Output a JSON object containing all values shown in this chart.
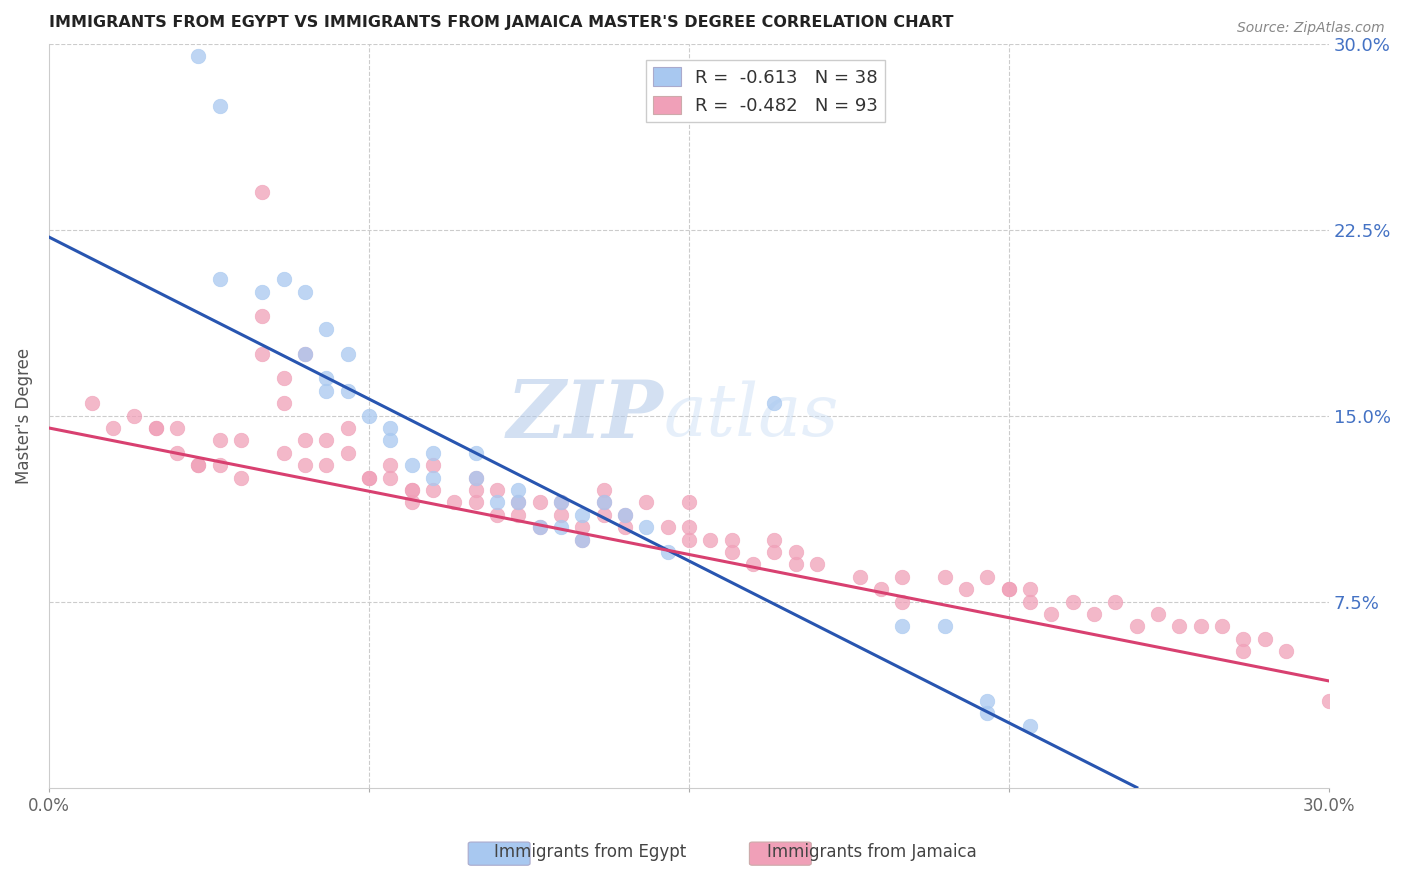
{
  "title": "IMMIGRANTS FROM EGYPT VS IMMIGRANTS FROM JAMAICA MASTER'S DEGREE CORRELATION CHART",
  "source": "Source: ZipAtlas.com",
  "ylabel": "Master's Degree",
  "ytick_labels": [
    "30.0%",
    "22.5%",
    "15.0%",
    "7.5%"
  ],
  "ytick_values": [
    0.3,
    0.225,
    0.15,
    0.075
  ],
  "xlim": [
    0.0,
    0.3
  ],
  "ylim": [
    0.0,
    0.3
  ],
  "legend_egypt_r": "R =  -0.613",
  "legend_egypt_n": "N = 38",
  "legend_jamaica_r": "R =  -0.482",
  "legend_jamaica_n": "N = 93",
  "egypt_color": "#a8c8f0",
  "jamaica_color": "#f0a0b8",
  "egypt_line_color": "#2855b0",
  "jamaica_line_color": "#d84070",
  "watermark_zip": "ZIP",
  "watermark_atlas": "atlas",
  "egypt_scatter_x": [
    0.035,
    0.04,
    0.04,
    0.05,
    0.055,
    0.06,
    0.065,
    0.07,
    0.06,
    0.065,
    0.065,
    0.07,
    0.075,
    0.08,
    0.08,
    0.085,
    0.09,
    0.09,
    0.1,
    0.1,
    0.105,
    0.11,
    0.11,
    0.115,
    0.12,
    0.125,
    0.12,
    0.125,
    0.13,
    0.135,
    0.14,
    0.145,
    0.17,
    0.2,
    0.21,
    0.22,
    0.22,
    0.23
  ],
  "egypt_scatter_y": [
    0.295,
    0.275,
    0.205,
    0.2,
    0.205,
    0.2,
    0.185,
    0.175,
    0.175,
    0.165,
    0.16,
    0.16,
    0.15,
    0.145,
    0.14,
    0.13,
    0.135,
    0.125,
    0.135,
    0.125,
    0.115,
    0.12,
    0.115,
    0.105,
    0.115,
    0.11,
    0.105,
    0.1,
    0.115,
    0.11,
    0.105,
    0.095,
    0.155,
    0.065,
    0.065,
    0.035,
    0.03,
    0.025
  ],
  "jamaica_scatter_x": [
    0.01,
    0.015,
    0.02,
    0.025,
    0.03,
    0.03,
    0.035,
    0.04,
    0.04,
    0.045,
    0.05,
    0.05,
    0.055,
    0.055,
    0.06,
    0.06,
    0.06,
    0.065,
    0.065,
    0.07,
    0.07,
    0.075,
    0.08,
    0.08,
    0.085,
    0.085,
    0.09,
    0.09,
    0.095,
    0.1,
    0.1,
    0.105,
    0.105,
    0.11,
    0.11,
    0.115,
    0.12,
    0.12,
    0.125,
    0.125,
    0.13,
    0.13,
    0.135,
    0.135,
    0.14,
    0.145,
    0.15,
    0.15,
    0.155,
    0.16,
    0.16,
    0.165,
    0.17,
    0.175,
    0.18,
    0.19,
    0.195,
    0.2,
    0.21,
    0.215,
    0.22,
    0.225,
    0.23,
    0.235,
    0.24,
    0.245,
    0.25,
    0.255,
    0.26,
    0.265,
    0.27,
    0.275,
    0.28,
    0.285,
    0.29,
    0.05,
    0.23,
    0.13,
    0.175,
    0.2,
    0.225,
    0.3,
    0.28,
    0.15,
    0.17,
    0.1,
    0.115,
    0.085,
    0.075,
    0.055,
    0.045,
    0.035,
    0.025
  ],
  "jamaica_scatter_y": [
    0.155,
    0.145,
    0.15,
    0.145,
    0.145,
    0.135,
    0.13,
    0.14,
    0.13,
    0.125,
    0.24,
    0.175,
    0.165,
    0.155,
    0.175,
    0.14,
    0.13,
    0.14,
    0.13,
    0.145,
    0.135,
    0.125,
    0.13,
    0.125,
    0.12,
    0.115,
    0.13,
    0.12,
    0.115,
    0.125,
    0.115,
    0.12,
    0.11,
    0.115,
    0.11,
    0.105,
    0.115,
    0.11,
    0.105,
    0.1,
    0.115,
    0.11,
    0.11,
    0.105,
    0.115,
    0.105,
    0.115,
    0.105,
    0.1,
    0.1,
    0.095,
    0.09,
    0.1,
    0.09,
    0.09,
    0.085,
    0.08,
    0.085,
    0.085,
    0.08,
    0.085,
    0.08,
    0.075,
    0.07,
    0.075,
    0.07,
    0.075,
    0.065,
    0.07,
    0.065,
    0.065,
    0.065,
    0.06,
    0.06,
    0.055,
    0.19,
    0.08,
    0.12,
    0.095,
    0.075,
    0.08,
    0.035,
    0.055,
    0.1,
    0.095,
    0.12,
    0.115,
    0.12,
    0.125,
    0.135,
    0.14,
    0.13,
    0.145
  ],
  "egypt_line_x0": 0.0,
  "egypt_line_y0": 0.222,
  "egypt_line_x1": 0.255,
  "egypt_line_y1": 0.0,
  "jamaica_line_x0": 0.0,
  "jamaica_line_y0": 0.145,
  "jamaica_line_x1": 0.3,
  "jamaica_line_y1": 0.043
}
